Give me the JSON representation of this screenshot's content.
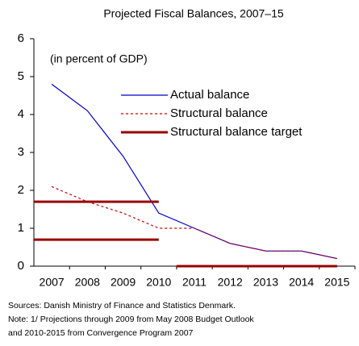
{
  "chart_data": {
    "type": "line",
    "title": "Projected Fiscal Balances, 2007–15",
    "annotation": "(in percent of GDP)",
    "categories": [
      "2007",
      "2008",
      "2009",
      "2010",
      "2011",
      "2012",
      "2013",
      "2014",
      "2015"
    ],
    "series": [
      {
        "name": "Actual balance",
        "color": "#0000cc",
        "style": "solid",
        "values": [
          4.8,
          4.1,
          2.9,
          1.4,
          1.0,
          0.6,
          0.4,
          0.4,
          0.2
        ]
      },
      {
        "name": "Structural balance",
        "color": "#cc0000",
        "style": "dotted",
        "values": [
          2.1,
          1.7,
          1.4,
          1.0,
          1.0,
          0.6,
          0.4,
          0.4,
          0.2
        ]
      },
      {
        "name": "Structural balance target",
        "color": "#990000",
        "style": "thick",
        "segments": [
          [
            1.7,
            1.7,
            1.7,
            1.7,
            null,
            null,
            null,
            null,
            null
          ],
          [
            0.7,
            0.7,
            0.7,
            0.7,
            null,
            null,
            null,
            null,
            null
          ],
          [
            null,
            null,
            null,
            null,
            0,
            0,
            0,
            0,
            0
          ]
        ]
      }
    ],
    "ylim": [
      0,
      6
    ],
    "yticks": [
      0,
      1,
      2,
      3,
      4,
      5,
      6
    ],
    "notes": [
      "Sources: Danish Ministry of Finance and Statistics Denmark.",
      "Note: 1/ Projections through 2009 from May 2008 Budget Outlook",
      "and 2010-2015 from Convergence Program 2007"
    ]
  }
}
